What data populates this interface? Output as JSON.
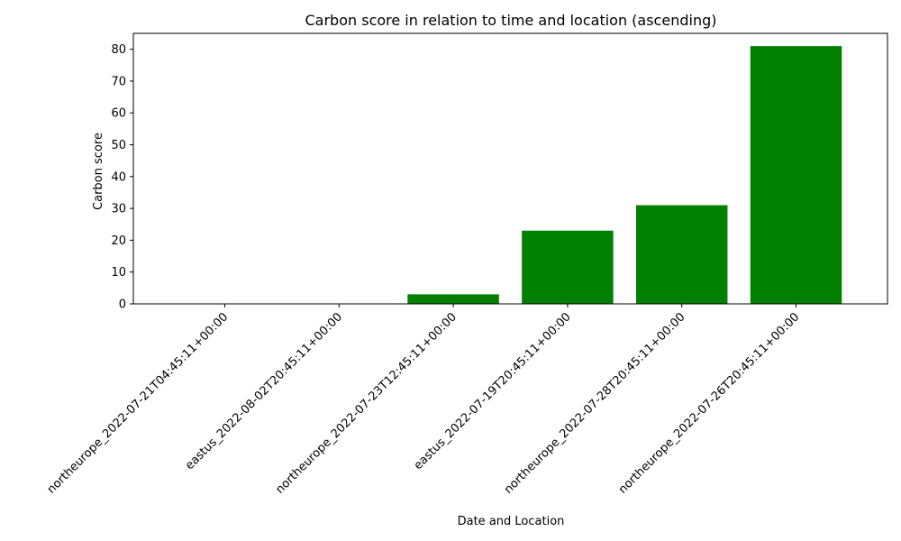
{
  "chart_data": {
    "type": "bar",
    "title": "Carbon score in relation to time and location (ascending)",
    "xlabel": "Date and Location",
    "ylabel": "Carbon score",
    "categories": [
      "northeurope_2022-07-21T04:45:11+00:00",
      "eastus_2022-08-02T20:45:11+00:00",
      "northeurope_2022-07-23T12:45:11+00:00",
      "eastus_2022-07-19T20:45:11+00:00",
      "northeurope_2022-07-28T20:45:11+00:00",
      "northeurope_2022-07-26T20:45:11+00:00"
    ],
    "values": [
      0,
      0,
      3,
      23,
      31,
      81
    ],
    "ylim": [
      0,
      85
    ],
    "yticks": [
      0,
      10,
      20,
      30,
      40,
      50,
      60,
      70,
      80
    ],
    "bar_color": "#008000",
    "grid": false,
    "legend": "none"
  }
}
